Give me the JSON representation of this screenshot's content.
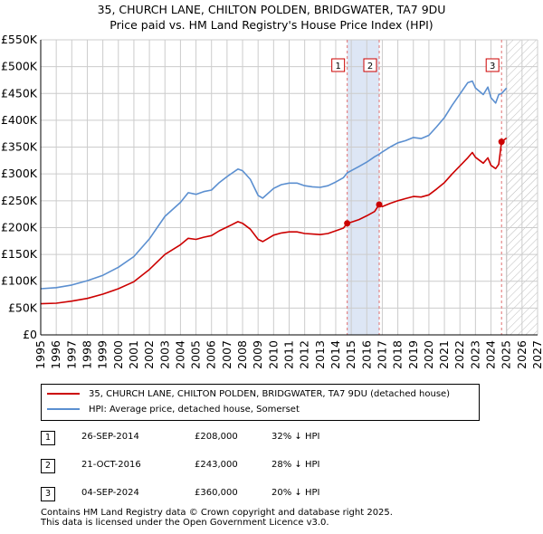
{
  "title": {
    "line1": "35, CHURCH LANE, CHILTON POLDEN, BRIDGWATER, TA7 9DU",
    "line2": "Price paid vs. HM Land Registry's House Price Index (HPI)"
  },
  "colors": {
    "property": "#cc0000",
    "hpi": "#5b8fd0",
    "grid": "#cccccc",
    "band": "#dde6f5",
    "marker_line": "#e07070"
  },
  "chart_data": {
    "type": "line",
    "title": "35, CHURCH LANE, CHILTON POLDEN, BRIDGWATER, TA7 9DU — Price paid vs. HM Land Registry's House Price Index (HPI)",
    "xlabel": "",
    "ylabel": "",
    "xlim": [
      1995,
      2027
    ],
    "ylim": [
      0,
      550000
    ],
    "x_ticks": [
      1995,
      1996,
      1997,
      1998,
      1999,
      2000,
      2001,
      2002,
      2003,
      2004,
      2005,
      2006,
      2007,
      2008,
      2009,
      2010,
      2011,
      2012,
      2013,
      2014,
      2015,
      2016,
      2017,
      2018,
      2019,
      2020,
      2021,
      2022,
      2023,
      2024,
      2025,
      2026,
      2027
    ],
    "y_ticks": [
      0,
      50000,
      100000,
      150000,
      200000,
      250000,
      300000,
      350000,
      400000,
      450000,
      500000,
      550000
    ],
    "y_tick_labels": [
      "£0",
      "£50K",
      "£100K",
      "£150K",
      "£200K",
      "£250K",
      "£300K",
      "£350K",
      "£400K",
      "£450K",
      "£500K",
      "£550K"
    ],
    "grid": true,
    "shaded_band": [
      2014.74,
      2016.8
    ],
    "hatched_future_from": 2025.0,
    "series": [
      {
        "name": "HPI: Average price, detached house, Somerset",
        "color": "#5b8fd0",
        "x": [
          1995.0,
          1996.0,
          1997.0,
          1998.0,
          1999.0,
          2000.0,
          2001.0,
          2002.0,
          2003.0,
          2004.0,
          2004.5,
          2005.0,
          2005.5,
          2006.0,
          2006.5,
          2007.0,
          2007.7,
          2008.0,
          2008.5,
          2009.0,
          2009.3,
          2010.0,
          2010.5,
          2011.0,
          2011.5,
          2012.0,
          2012.5,
          2013.0,
          2013.5,
          2014.0,
          2014.5,
          2014.74,
          2015.0,
          2015.5,
          2016.0,
          2016.5,
          2016.8,
          2017.0,
          2017.5,
          2018.0,
          2018.5,
          2019.0,
          2019.5,
          2020.0,
          2020.5,
          2021.0,
          2021.5,
          2022.0,
          2022.5,
          2022.8,
          2023.0,
          2023.5,
          2023.8,
          2024.0,
          2024.3,
          2024.5,
          2024.68,
          2025.0
        ],
        "values": [
          86000,
          88000,
          93000,
          101000,
          111000,
          126000,
          146000,
          179000,
          221000,
          247000,
          265000,
          262000,
          267000,
          270000,
          284000,
          295000,
          309000,
          306000,
          290000,
          260000,
          255000,
          273000,
          280000,
          283000,
          283000,
          278000,
          276000,
          275000,
          278000,
          285000,
          293000,
          302000,
          306000,
          314000,
          322000,
          332000,
          337000,
          341000,
          350000,
          358000,
          362000,
          368000,
          366000,
          372000,
          388000,
          405000,
          428000,
          449000,
          470000,
          473000,
          460000,
          448000,
          462000,
          442000,
          432000,
          448000,
          450000,
          460000
        ]
      },
      {
        "name": "35, CHURCH LANE, CHILTON POLDEN, BRIDGWATER, TA7 9DU (detached house)",
        "color": "#cc0000",
        "x": [
          1995.0,
          1996.0,
          1997.0,
          1998.0,
          1999.0,
          2000.0,
          2001.0,
          2002.0,
          2003.0,
          2004.0,
          2004.5,
          2005.0,
          2005.5,
          2006.0,
          2006.5,
          2007.0,
          2007.7,
          2008.0,
          2008.5,
          2009.0,
          2009.3,
          2010.0,
          2010.5,
          2011.0,
          2011.5,
          2012.0,
          2012.5,
          2013.0,
          2013.5,
          2014.0,
          2014.5,
          2014.74,
          2015.0,
          2015.5,
          2016.0,
          2016.5,
          2016.8,
          2017.0,
          2017.5,
          2018.0,
          2018.5,
          2019.0,
          2019.5,
          2020.0,
          2020.5,
          2021.0,
          2021.5,
          2022.0,
          2022.5,
          2022.8,
          2023.0,
          2023.5,
          2023.8,
          2024.0,
          2024.3,
          2024.5,
          2024.68,
          2025.0
        ],
        "values": [
          58000,
          59000,
          63000,
          68000,
          76000,
          86000,
          99000,
          122000,
          150000,
          168000,
          180000,
          178000,
          182000,
          185000,
          194000,
          201000,
          211000,
          208000,
          197000,
          178000,
          174000,
          186000,
          190000,
          192000,
          192000,
          189000,
          188000,
          187000,
          189000,
          194000,
          199000,
          208000,
          210000,
          215000,
          222000,
          230000,
          243000,
          239000,
          245000,
          250000,
          254000,
          258000,
          257000,
          261000,
          272000,
          284000,
          300000,
          315000,
          330000,
          340000,
          331000,
          320000,
          330000,
          316000,
          310000,
          318000,
          360000,
          367000
        ]
      }
    ],
    "sale_points": [
      {
        "id": "1",
        "x": 2014.74,
        "value": 208000
      },
      {
        "id": "2",
        "x": 2016.8,
        "value": 243000
      },
      {
        "id": "3",
        "x": 2024.68,
        "value": 360000
      }
    ]
  },
  "legend": {
    "property_label": "35, CHURCH LANE, CHILTON POLDEN, BRIDGWATER, TA7 9DU (detached house)",
    "hpi_label": "HPI: Average price, detached house, Somerset"
  },
  "sales": [
    {
      "id": "1",
      "date": "26-SEP-2014",
      "price": "£208,000",
      "pct": "32% ↓ HPI"
    },
    {
      "id": "2",
      "date": "21-OCT-2016",
      "price": "£243,000",
      "pct": "28% ↓ HPI"
    },
    {
      "id": "3",
      "date": "04-SEP-2024",
      "price": "£360,000",
      "pct": "20% ↓ HPI"
    }
  ],
  "footer": {
    "line1": "Contains HM Land Registry data © Crown copyright and database right 2025.",
    "line2": "This data is licensed under the Open Government Licence v3.0."
  }
}
